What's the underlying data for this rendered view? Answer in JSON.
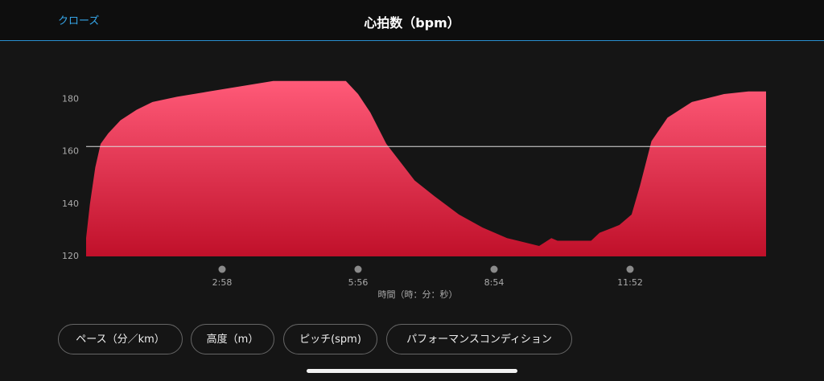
{
  "header": {
    "close": "クローズ",
    "title": "心拍数（bpm）"
  },
  "chart_data": {
    "type": "area",
    "x_label": "時間（時：分：秒）",
    "x": [
      0,
      5,
      12,
      19,
      29,
      45,
      66,
      87,
      119,
      161,
      203,
      245,
      287,
      340,
      356,
      372,
      393,
      430,
      456,
      488,
      519,
      551,
      593,
      609,
      617,
      661,
      672,
      698,
      714,
      725,
      740,
      761,
      793,
      835,
      867,
      890
    ],
    "values": [
      127,
      140,
      154,
      163,
      167,
      172,
      176,
      179,
      181,
      183,
      185,
      187,
      187,
      187,
      182,
      175,
      163,
      149,
      143,
      136,
      131,
      127,
      124,
      127,
      126,
      126,
      129,
      132,
      136,
      147,
      164,
      173,
      179,
      182,
      183,
      183
    ],
    "color": "#e8304f",
    "xlim": [
      0,
      890
    ],
    "ylim": [
      120,
      190
    ],
    "yticks": [
      120,
      140,
      160,
      180
    ],
    "xticks": [
      {
        "value": 178,
        "label": "2:58"
      },
      {
        "value": 356,
        "label": "5:56"
      },
      {
        "value": 534,
        "label": "8:54"
      },
      {
        "value": 712,
        "label": "11:52"
      }
    ],
    "reference_line": 162
  },
  "buttons": [
    "ペース（分／km）",
    "高度（m）",
    "ピッチ(spm)",
    "パフォーマンスコンディション"
  ]
}
